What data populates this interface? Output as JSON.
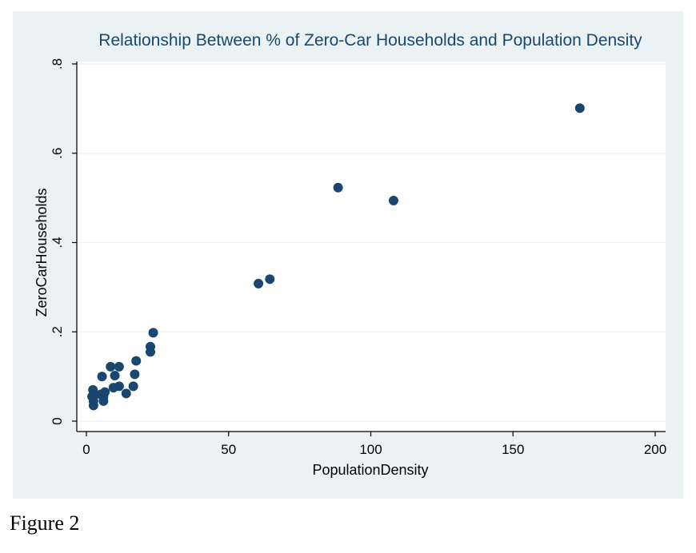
{
  "figure": {
    "caption": "Figure 2"
  },
  "colors": {
    "background": "#eaf2f3",
    "plot_area": "#ffffff",
    "marker": "#1a476f",
    "title": "#1a476f",
    "grid": "#eaf2f3"
  },
  "chart_data": {
    "type": "scatter",
    "title": "Relationship Between % of Zero-Car Households and Population Density",
    "xlabel": "PopulationDensity",
    "ylabel": "ZeroCarHouseholds",
    "xlim": [
      0,
      200
    ],
    "ylim": [
      0,
      0.8
    ],
    "xticks": [
      0,
      50,
      100,
      150,
      200
    ],
    "xtick_labels": [
      "0",
      "50",
      "100",
      "150",
      "200"
    ],
    "yticks": [
      0,
      0.2,
      0.4,
      0.6,
      0.8
    ],
    "ytick_labels": [
      "0",
      ".2",
      ".4",
      ".6",
      ".8"
    ],
    "grid": true,
    "legend": "none",
    "points": [
      {
        "x": 2,
        "y": 0.055
      },
      {
        "x": 2.3,
        "y": 0.07
      },
      {
        "x": 2.5,
        "y": 0.035
      },
      {
        "x": 2.5,
        "y": 0.045
      },
      {
        "x": 3,
        "y": 0.06
      },
      {
        "x": 5,
        "y": 0.06
      },
      {
        "x": 5.5,
        "y": 0.1
      },
      {
        "x": 6,
        "y": 0.055
      },
      {
        "x": 6,
        "y": 0.045
      },
      {
        "x": 6.5,
        "y": 0.065
      },
      {
        "x": 8.5,
        "y": 0.122
      },
      {
        "x": 9.5,
        "y": 0.075
      },
      {
        "x": 10,
        "y": 0.102
      },
      {
        "x": 11.5,
        "y": 0.122
      },
      {
        "x": 11.5,
        "y": 0.078
      },
      {
        "x": 14,
        "y": 0.062
      },
      {
        "x": 16.5,
        "y": 0.078
      },
      {
        "x": 17,
        "y": 0.105
      },
      {
        "x": 17.5,
        "y": 0.135
      },
      {
        "x": 22.5,
        "y": 0.155
      },
      {
        "x": 22.5,
        "y": 0.167
      },
      {
        "x": 23.5,
        "y": 0.198
      },
      {
        "x": 60.5,
        "y": 0.308
      },
      {
        "x": 64.5,
        "y": 0.318
      },
      {
        "x": 88.5,
        "y": 0.523
      },
      {
        "x": 108,
        "y": 0.494
      },
      {
        "x": 173.5,
        "y": 0.701
      }
    ]
  }
}
